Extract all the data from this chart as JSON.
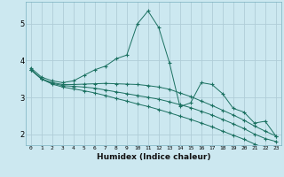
{
  "xlabel": "Humidex (Indice chaleur)",
  "ylabel": "",
  "bg_color": "#cce8f0",
  "grid_color": "#b0cdd8",
  "line_color": "#1a7060",
  "xlim": [
    -0.5,
    23.5
  ],
  "ylim": [
    1.7,
    5.6
  ],
  "xticks": [
    0,
    1,
    2,
    3,
    4,
    5,
    6,
    7,
    8,
    9,
    10,
    11,
    12,
    13,
    14,
    15,
    16,
    17,
    18,
    19,
    20,
    21,
    22,
    23
  ],
  "yticks": [
    2,
    3,
    4,
    5
  ],
  "series": [
    {
      "x": [
        0,
        1,
        2,
        3,
        4,
        5,
        6,
        7,
        8,
        9,
        10,
        11,
        12,
        13,
        14,
        15,
        16,
        17,
        18,
        19,
        20,
        21,
        22,
        23
      ],
      "y": [
        3.8,
        3.55,
        3.45,
        3.4,
        3.45,
        3.6,
        3.75,
        3.85,
        4.05,
        4.15,
        5.0,
        5.35,
        4.9,
        3.95,
        2.75,
        2.85,
        3.4,
        3.35,
        3.1,
        2.7,
        2.6,
        2.3,
        2.35,
        1.95
      ]
    },
    {
      "x": [
        0,
        1,
        2,
        3,
        4,
        5,
        6,
        7,
        8,
        9,
        10,
        11,
        12,
        13,
        14,
        15,
        16,
        17,
        18,
        19,
        20,
        21,
        22,
        23
      ],
      "y": [
        3.75,
        3.5,
        3.4,
        3.35,
        3.35,
        3.36,
        3.37,
        3.38,
        3.37,
        3.36,
        3.35,
        3.32,
        3.28,
        3.22,
        3.12,
        3.02,
        2.9,
        2.78,
        2.65,
        2.52,
        2.38,
        2.22,
        2.08,
        1.95
      ]
    },
    {
      "x": [
        0,
        1,
        2,
        3,
        4,
        5,
        6,
        7,
        8,
        9,
        10,
        11,
        12,
        13,
        14,
        15,
        16,
        17,
        18,
        19,
        20,
        21,
        22,
        23
      ],
      "y": [
        3.75,
        3.5,
        3.38,
        3.32,
        3.3,
        3.28,
        3.25,
        3.2,
        3.15,
        3.1,
        3.05,
        3.0,
        2.95,
        2.88,
        2.8,
        2.72,
        2.62,
        2.52,
        2.4,
        2.28,
        2.15,
        2.0,
        1.88,
        1.8
      ]
    },
    {
      "x": [
        0,
        1,
        2,
        3,
        4,
        5,
        6,
        7,
        8,
        9,
        10,
        11,
        12,
        13,
        14,
        15,
        16,
        17,
        18,
        19,
        20,
        21,
        22,
        23
      ],
      "y": [
        3.75,
        3.5,
        3.36,
        3.28,
        3.23,
        3.18,
        3.12,
        3.05,
        2.97,
        2.9,
        2.82,
        2.75,
        2.67,
        2.58,
        2.49,
        2.4,
        2.3,
        2.2,
        2.08,
        1.97,
        1.86,
        1.73,
        1.62,
        1.55
      ]
    }
  ]
}
